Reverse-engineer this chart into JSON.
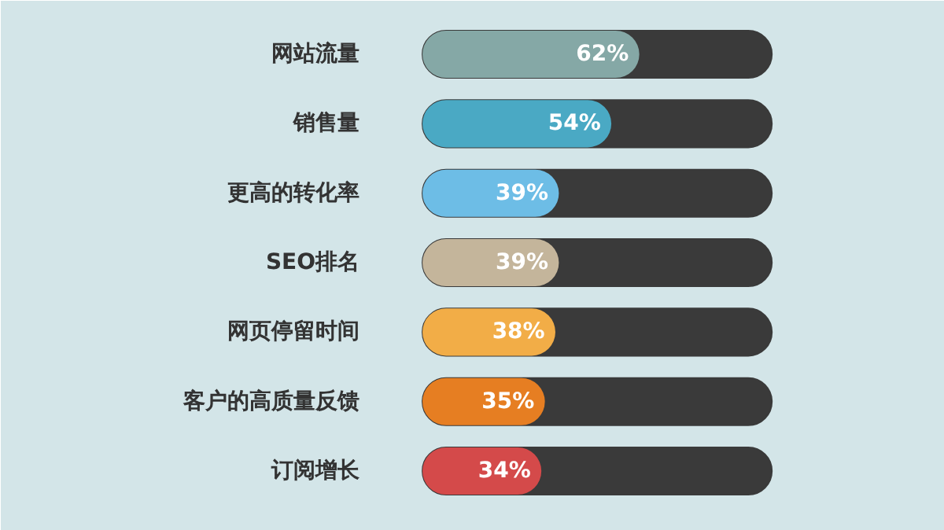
{
  "chart_data": {
    "type": "bar",
    "orientation": "horizontal",
    "categories": [
      "网站流量",
      "销售量",
      "更高的转化率",
      "SEO排名",
      "网页停留时间",
      "客户的高质量反馈",
      "订阅增长"
    ],
    "values": [
      62,
      54,
      39,
      39,
      38,
      35,
      34
    ],
    "colors": [
      "#85a8a6",
      "#4aa9c4",
      "#6dbde6",
      "#c4b59b",
      "#f2ad47",
      "#e67e22",
      "#d44a4a"
    ],
    "value_labels": [
      "62%",
      "54%",
      "39%",
      "39%",
      "38%",
      "35%",
      "34%"
    ],
    "tick_labels": false,
    "grid": false
  }
}
